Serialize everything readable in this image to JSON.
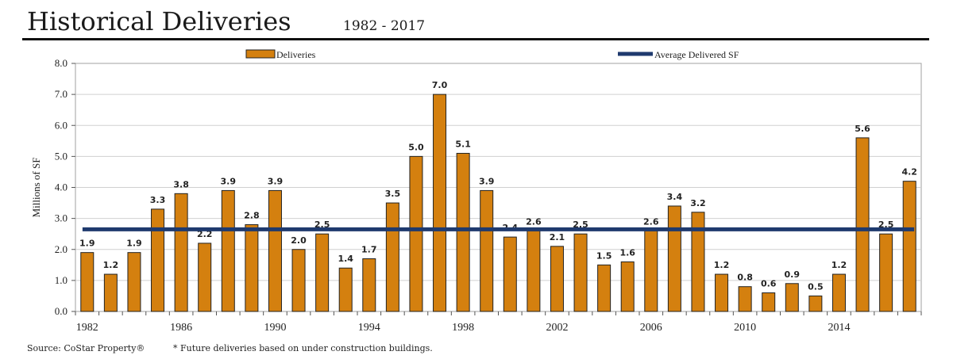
{
  "header": {
    "title": "Historical Deliveries",
    "subtitle": "1982 - 2017"
  },
  "footer": {
    "source": "Source: CoStar Property®",
    "note": "* Future deliveries based on under construction buildings."
  },
  "colors": {
    "bar": "#D4800F",
    "average": "#1F3A6E",
    "grid": "#D0D0D0"
  },
  "chart_data": {
    "type": "bar",
    "title": "Historical Deliveries",
    "ylabel": "Millions of SF",
    "xlabel": "",
    "ylim": [
      0,
      8
    ],
    "yticks": [
      "0.0",
      "1.0",
      "2.0",
      "3.0",
      "4.0",
      "5.0",
      "6.0",
      "7.0",
      "8.0"
    ],
    "xticks": [
      "1982",
      "1986",
      "1990",
      "1994",
      "1998",
      "2002",
      "2006",
      "2010",
      "2014"
    ],
    "categories": [
      1982,
      1983,
      1984,
      1985,
      1986,
      1987,
      1988,
      1989,
      1990,
      1991,
      1992,
      1993,
      1994,
      1995,
      1996,
      1997,
      1998,
      1999,
      2000,
      2001,
      2002,
      2003,
      2004,
      2005,
      2006,
      2007,
      2008,
      2009,
      2010,
      2011,
      2012,
      2013,
      2014,
      2015,
      2016,
      2017
    ],
    "series": [
      {
        "name": "Deliveries",
        "values": [
          1.9,
          1.2,
          1.9,
          3.3,
          3.8,
          2.2,
          3.9,
          2.8,
          3.9,
          2.0,
          2.5,
          1.4,
          1.7,
          3.5,
          5.0,
          7.0,
          5.1,
          3.9,
          2.4,
          2.6,
          2.1,
          2.5,
          1.5,
          1.6,
          2.6,
          3.4,
          3.2,
          1.2,
          0.8,
          0.6,
          0.9,
          0.5,
          1.2,
          5.6,
          2.5,
          4.2
        ]
      },
      {
        "name": "Average Delivered SF",
        "value": 2.65
      }
    ],
    "legend": "top",
    "grid": true
  }
}
